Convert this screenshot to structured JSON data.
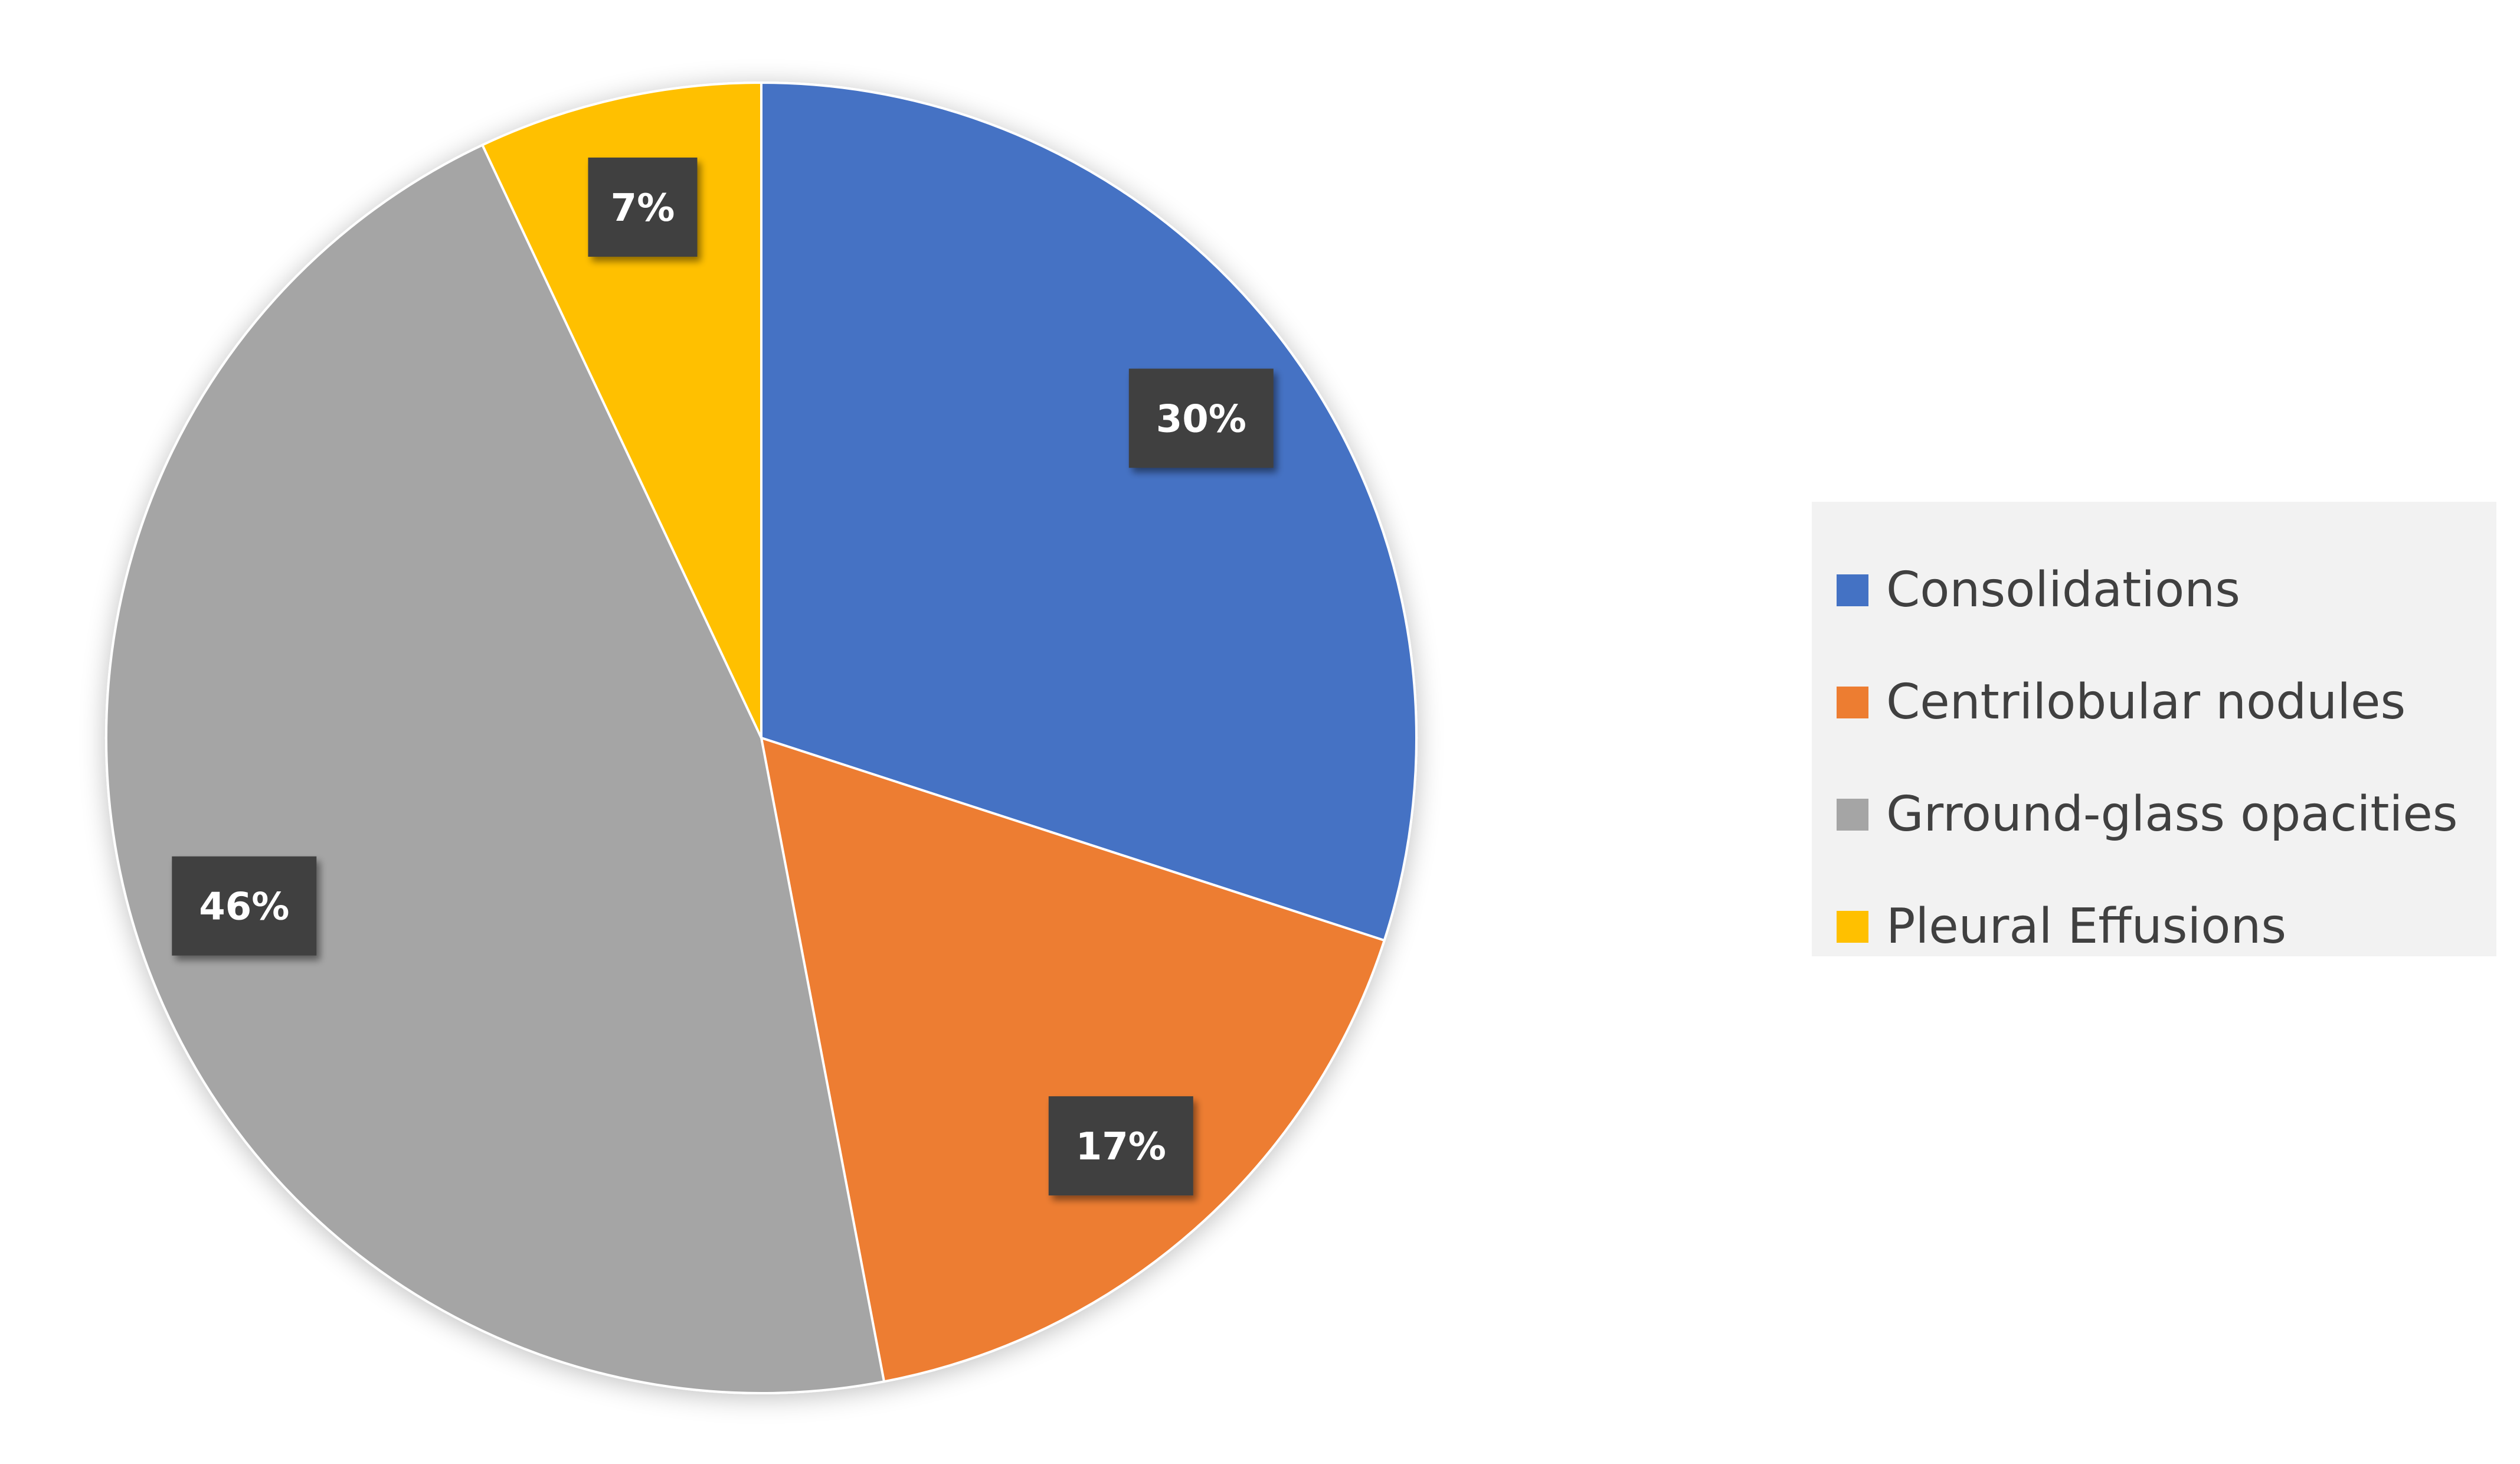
{
  "chart_data": {
    "type": "pie",
    "slices": [
      {
        "label": "Consolidations",
        "value": 30,
        "display": "30%",
        "color": "#4472C4"
      },
      {
        "label": "Centrilobular nodules",
        "value": 17,
        "display": "17%",
        "color": "#ED7D31"
      },
      {
        "label": "Grround-glass opacities",
        "value": 46,
        "display": "46%",
        "color": "#A5A5A5"
      },
      {
        "label": "Pleural Effusions",
        "value": 7,
        "display": "7%",
        "color": "#FFC000"
      }
    ],
    "start_angle_deg": 0,
    "direction": "clockwise",
    "legend_position": "right",
    "data_label_style": "dark-box"
  },
  "legend": {
    "items": [
      {
        "label": "Consolidations",
        "color": "#4472C4"
      },
      {
        "label": "Centrilobular nodules",
        "color": "#ED7D31"
      },
      {
        "label": "Grround-glass opacities",
        "color": "#A5A5A5"
      },
      {
        "label": "Pleural Effusions",
        "color": "#FFC000"
      }
    ]
  }
}
